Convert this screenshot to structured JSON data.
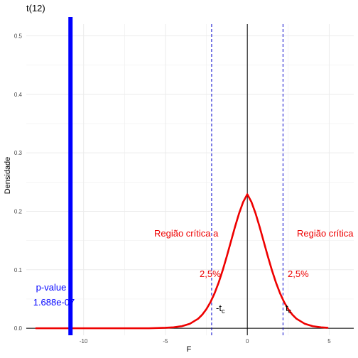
{
  "chart_data": {
    "type": "line",
    "title": "t(12)",
    "xlabel": "F",
    "ylabel": "Densidade",
    "xlim": [
      -13.5,
      6.5
    ],
    "ylim": [
      -0.012,
      0.52
    ],
    "xticks": [
      -10,
      -5,
      0,
      5
    ],
    "yticks": [
      0.0,
      0.1,
      0.2,
      0.3,
      0.4,
      0.5
    ],
    "xtick_labels": [
      "-10",
      "-5",
      "0",
      "5"
    ],
    "ytick_labels": [
      "0.0",
      "0.1",
      "0.2",
      "0.3",
      "0.4",
      "0.5"
    ],
    "grid": true,
    "series": [
      {
        "color": "#ee0000",
        "x": [
          -12.9,
          -12,
          -11,
          -10,
          -9,
          -8,
          -7,
          -6,
          -5,
          -4.5,
          -4,
          -3.5,
          -3,
          -2.75,
          -2.5,
          -2.25,
          -2,
          -1.75,
          -1.5,
          -1.25,
          -1,
          -0.75,
          -0.5,
          -0.25,
          0,
          0.25,
          0.5,
          0.75,
          1,
          1.25,
          1.5,
          1.75,
          2,
          2.25,
          2.5,
          2.75,
          3,
          3.5,
          4,
          4.5,
          4.9
        ],
        "y": [
          0.0,
          0.0,
          0.0,
          0.0,
          0.0,
          0.0,
          0.0,
          0.0,
          0.0008,
          0.0016,
          0.0035,
          0.0078,
          0.0163,
          0.0233,
          0.0326,
          0.0446,
          0.0597,
          0.0781,
          0.0995,
          0.1233,
          0.1484,
          0.1735,
          0.1967,
          0.2161,
          0.2291,
          0.2161,
          0.1967,
          0.1735,
          0.1484,
          0.1233,
          0.0995,
          0.0781,
          0.0597,
          0.0446,
          0.0326,
          0.0233,
          0.0163,
          0.0078,
          0.0035,
          0.0016,
          0.0008
        ]
      }
    ],
    "reference_lines": {
      "zero_vertical": {
        "x": 0,
        "color": "#000000"
      },
      "baseline": {
        "y": 0,
        "color": "#000000"
      },
      "critical": {
        "values": [
          -2.179,
          2.179
        ],
        "color": "#0000cc",
        "style": "dashed"
      },
      "statistic": {
        "x": -10.8,
        "color": "#0000ff"
      }
    },
    "annotations": {
      "left_region": "Região crítica a",
      "right_region": "Região crítica",
      "left_pct": "2,5%",
      "right_pct": "2,5%",
      "neg_tc_prefix": "-t",
      "tc_prefix": "t",
      "tc_sub": "c",
      "pvalue_label": "p-value",
      "pvalue_value": "1.688e-07"
    },
    "colors": {
      "curve": "#ee0000",
      "region_text": "#ee0000",
      "pvalue_text": "#0000ff",
      "grid": "#ebebeb"
    }
  }
}
